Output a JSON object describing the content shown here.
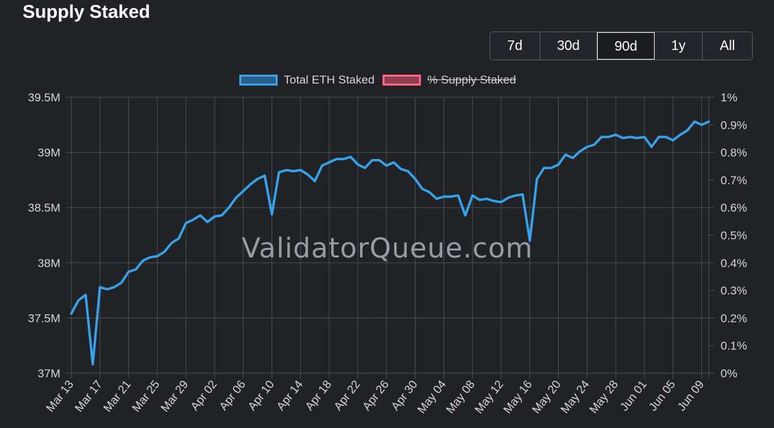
{
  "title": "Supply Staked",
  "ranges": [
    {
      "label": "7d",
      "active": false
    },
    {
      "label": "30d",
      "active": false
    },
    {
      "label": "90d",
      "active": true
    },
    {
      "label": "1y",
      "active": false
    },
    {
      "label": "All",
      "active": false
    }
  ],
  "watermark": "ValidatorQueue.com",
  "chart_data": {
    "type": "line",
    "title": "Supply Staked",
    "legend": [
      {
        "name": "Total ETH Staked",
        "color": "#36a2eb",
        "hidden": false
      },
      {
        "name": "% Supply Staked",
        "color": "#ff6384",
        "hidden": true
      }
    ],
    "legend_position": "top",
    "grid": true,
    "y_left": {
      "min": 37000000,
      "max": 39500000,
      "ticks": [
        "37M",
        "37.5M",
        "38M",
        "38.5M",
        "39M",
        "39.5M"
      ]
    },
    "y_right": {
      "min": 0,
      "max": 1,
      "ticks": [
        "0%",
        "0.1%",
        "0.2%",
        "0.3%",
        "0.4%",
        "0.5%",
        "0.6%",
        "0.7%",
        "0.8%",
        "0.9%",
        "1%"
      ]
    },
    "x_tick_labels": [
      "Mar 13",
      "Mar 17",
      "Mar 21",
      "Mar 25",
      "Mar 29",
      "Apr 02",
      "Apr 06",
      "Apr 10",
      "Apr 14",
      "Apr 18",
      "Apr 22",
      "Apr 26",
      "Apr 30",
      "May 04",
      "May 08",
      "May 12",
      "May 16",
      "May 20",
      "May 24",
      "May 28",
      "Jun 01",
      "Jun 05",
      "Jun 09"
    ],
    "series": [
      {
        "name": "Total ETH Staked",
        "color": "#36a2eb",
        "values": [
          37540000,
          37660000,
          37710000,
          37080000,
          37780000,
          37760000,
          37780000,
          37820000,
          37920000,
          37940000,
          38020000,
          38050000,
          38060000,
          38100000,
          38180000,
          38220000,
          38360000,
          38390000,
          38430000,
          38370000,
          38420000,
          38430000,
          38500000,
          38590000,
          38650000,
          38710000,
          38760000,
          38790000,
          38440000,
          38820000,
          38840000,
          38830000,
          38840000,
          38800000,
          38740000,
          38880000,
          38910000,
          38940000,
          38940000,
          38960000,
          38890000,
          38860000,
          38930000,
          38930000,
          38880000,
          38910000,
          38850000,
          38830000,
          38760000,
          38670000,
          38640000,
          38580000,
          38600000,
          38600000,
          38610000,
          38430000,
          38610000,
          38570000,
          38580000,
          38560000,
          38550000,
          38590000,
          38610000,
          38620000,
          38200000,
          38760000,
          38860000,
          38860000,
          38890000,
          38980000,
          38950000,
          39010000,
          39050000,
          39070000,
          39140000,
          39140000,
          39160000,
          39130000,
          39140000,
          39130000,
          39140000,
          39050000,
          39140000,
          39140000,
          39110000,
          39160000,
          39200000,
          39280000,
          39250000,
          39280000
        ]
      }
    ]
  }
}
